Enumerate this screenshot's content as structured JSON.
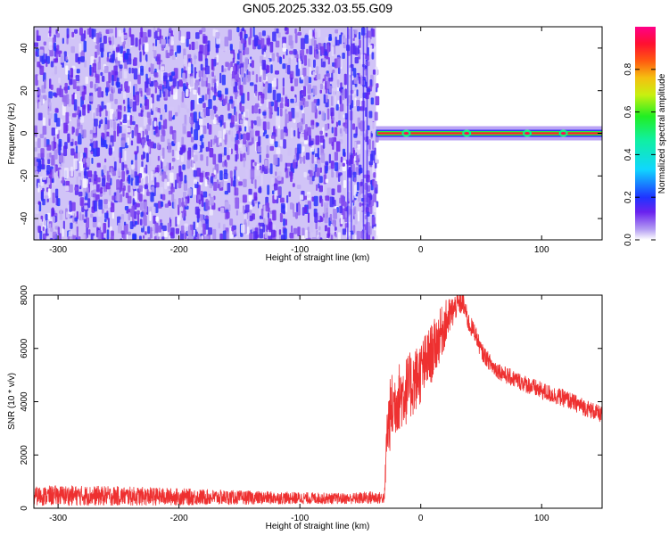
{
  "title": "GN05.2025.332.03.55.G09",
  "chart_data": [
    {
      "type": "heatmap",
      "title": "",
      "xlabel": "Height of straight line (km)",
      "ylabel": "Frequency (Hz)",
      "xlim": [
        -320,
        150
      ],
      "ylim": [
        -50,
        50
      ],
      "xticks": [
        -300,
        -200,
        -100,
        0,
        100
      ],
      "yticks": [
        -40,
        -20,
        0,
        20,
        40
      ],
      "x_ticklabels": [
        "-300",
        "-200",
        "-100",
        "0",
        "100"
      ],
      "y_ticklabels": [
        "-40",
        "-20",
        "0",
        "20",
        "40"
      ],
      "noise_region_x": [
        -320,
        -37
      ],
      "noise_amplitude_range": [
        0.0,
        0.2
      ],
      "signal_line": {
        "x_start": -37,
        "x_end": 150,
        "frequency": 0,
        "amplitude": 0.9,
        "bright_spots_x": [
          -12,
          38,
          88,
          118
        ]
      },
      "colorbar": {
        "label": "Normalized spectral amplitude",
        "range": [
          0.0,
          1.0
        ],
        "ticks": [
          0.0,
          0.2,
          0.4,
          0.6,
          0.8
        ],
        "tick_labels": [
          "0.0",
          "0.2",
          "0.4",
          "0.6",
          "0.8"
        ]
      }
    },
    {
      "type": "line",
      "title": "",
      "xlabel": "Height of straight line (km)",
      "ylabel": "SNR (10 * v/v)",
      "xlim": [
        -320,
        150
      ],
      "ylim": [
        0,
        8000
      ],
      "xticks": [
        -300,
        -200,
        -100,
        0,
        100
      ],
      "yticks": [
        0,
        2000,
        4000,
        6000,
        8000
      ],
      "x_ticklabels": [
        "-300",
        "-200",
        "-100",
        "0",
        "100"
      ],
      "y_ticklabels": [
        "0",
        "2000",
        "4000",
        "6000",
        "8000"
      ],
      "series": [
        {
          "name": "SNR",
          "color": "#ee3030",
          "x": [
            -320,
            -300,
            -250,
            -200,
            -150,
            -100,
            -60,
            -40,
            -30,
            -28,
            -25,
            -20,
            -10,
            0,
            10,
            20,
            30,
            35,
            40,
            45,
            50,
            60,
            70,
            80,
            90,
            100,
            110,
            120,
            130,
            140,
            150
          ],
          "y": [
            450,
            480,
            460,
            430,
            400,
            380,
            360,
            400,
            380,
            2800,
            3600,
            4100,
            4500,
            5100,
            5900,
            6900,
            7650,
            7700,
            6900,
            6600,
            5900,
            5300,
            5000,
            4800,
            4600,
            4400,
            4250,
            4100,
            3900,
            3700,
            3500
          ],
          "noise_amplitude": [
            350,
            380,
            360,
            320,
            260,
            220,
            200,
            250,
            200,
            1100,
            1400,
            1300,
            1300,
            1200,
            1100,
            900,
            450,
            400,
            380,
            330,
            320,
            320,
            320,
            320,
            330,
            330,
            330,
            330,
            320,
            320,
            300
          ]
        }
      ]
    }
  ]
}
